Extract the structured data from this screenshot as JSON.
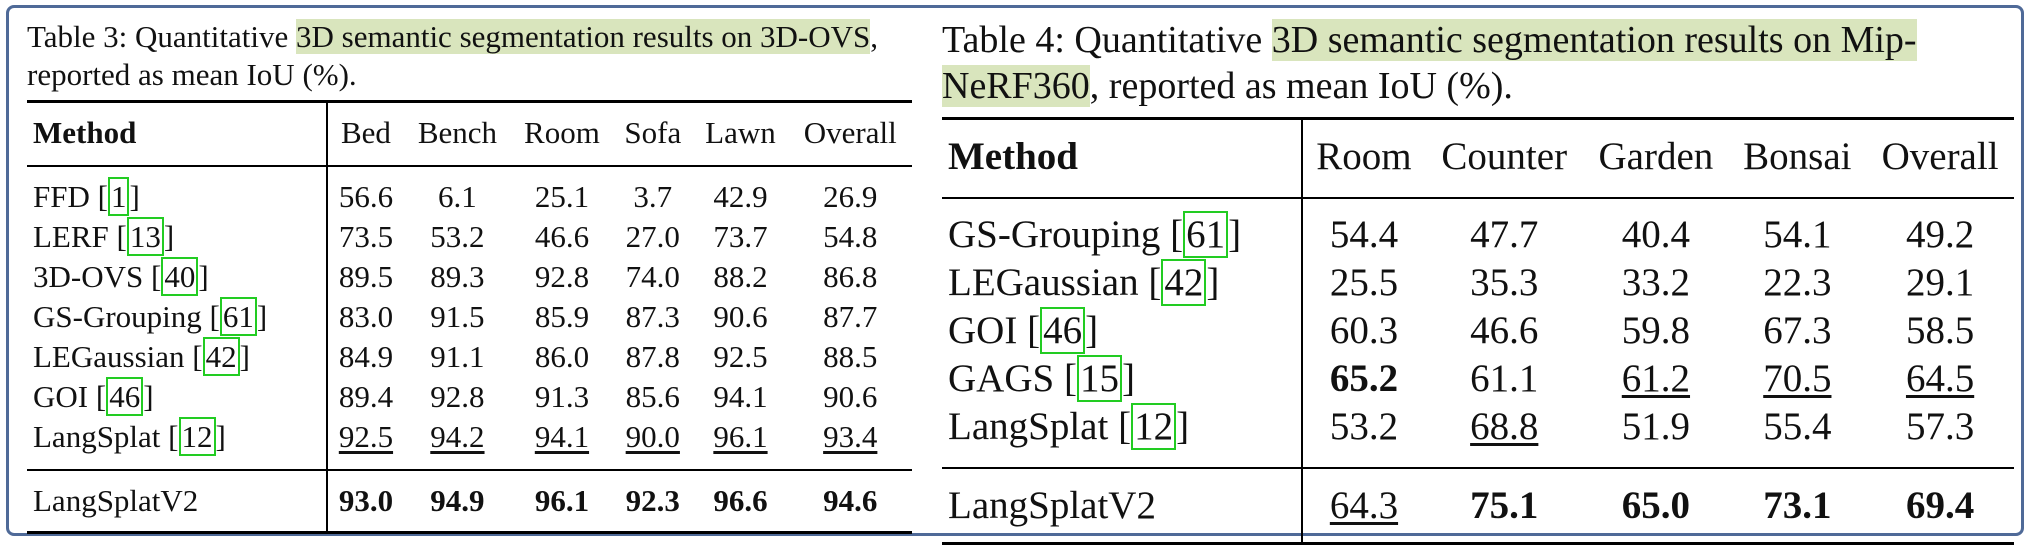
{
  "table3": {
    "caption_prefix": "Table 3: Quantitative ",
    "caption_highlight": "3D semantic segmentation results on 3D-OVS",
    "caption_suffix": ", reported as mean IoU (%).",
    "header": [
      "Method",
      "Bed",
      "Bench",
      "Room",
      "Sofa",
      "Lawn",
      "Overall"
    ],
    "rows": [
      {
        "method": "FFD ",
        "cite": "1",
        "values": [
          "56.6",
          "6.1",
          "25.1",
          "3.7",
          "42.9",
          "26.9"
        ]
      },
      {
        "method": "LERF ",
        "cite": "13",
        "values": [
          "73.5",
          "53.2",
          "46.6",
          "27.0",
          "73.7",
          "54.8"
        ]
      },
      {
        "method": "3D-OVS ",
        "cite": "40",
        "values": [
          "89.5",
          "89.3",
          "92.8",
          "74.0",
          "88.2",
          "86.8"
        ]
      },
      {
        "method": "GS-Grouping ",
        "cite": "61",
        "values": [
          "83.0",
          "91.5",
          "85.9",
          "87.3",
          "90.6",
          "87.7"
        ]
      },
      {
        "method": "LEGaussian ",
        "cite": "42",
        "values": [
          "84.9",
          "91.1",
          "86.0",
          "87.8",
          "92.5",
          "88.5"
        ]
      },
      {
        "method": "GOI ",
        "cite": "46",
        "values": [
          "89.4",
          "92.8",
          "91.3",
          "85.6",
          "94.1",
          "90.6"
        ]
      },
      {
        "method": "LangSplat ",
        "cite": "12",
        "values": [
          "92.5",
          "94.2",
          "94.1",
          "90.0",
          "96.1",
          "93.4"
        ]
      }
    ],
    "ours": {
      "method": "LangSplatV2",
      "values": [
        "93.0",
        "94.9",
        "96.1",
        "92.3",
        "96.6",
        "94.6"
      ]
    }
  },
  "table4": {
    "caption_prefix": "Table 4: Quantitative ",
    "caption_highlight": "3D semantic segmentation results on Mip-NeRF360",
    "caption_suffix": ", reported as mean IoU (%).",
    "header": [
      "Method",
      "Room",
      "Counter",
      "Garden",
      "Bonsai",
      "Overall"
    ],
    "rows": [
      {
        "method": "GS-Grouping ",
        "cite": "61",
        "values": [
          "54.4",
          "47.7",
          "40.4",
          "54.1",
          "49.2"
        ]
      },
      {
        "method": "LEGaussian ",
        "cite": "42",
        "values": [
          "25.5",
          "35.3",
          "33.2",
          "22.3",
          "29.1"
        ]
      },
      {
        "method": "GOI ",
        "cite": "46",
        "values": [
          "60.3",
          "46.6",
          "59.8",
          "67.3",
          "58.5"
        ]
      },
      {
        "method": "GAGS ",
        "cite": "15",
        "values": [
          "65.2",
          "61.1",
          "61.2",
          "70.5",
          "64.5"
        ]
      },
      {
        "method": "LangSplat ",
        "cite": "12",
        "values": [
          "53.2",
          "68.8",
          "51.9",
          "55.4",
          "57.3"
        ]
      }
    ],
    "ours": {
      "method": "LangSplatV2",
      "values": [
        "64.3",
        "75.1",
        "65.0",
        "73.1",
        "69.4"
      ]
    }
  },
  "colors": {
    "highlight": "#d9e5bd",
    "cite_box": "#22cc22",
    "frame": "#4f6a98"
  }
}
